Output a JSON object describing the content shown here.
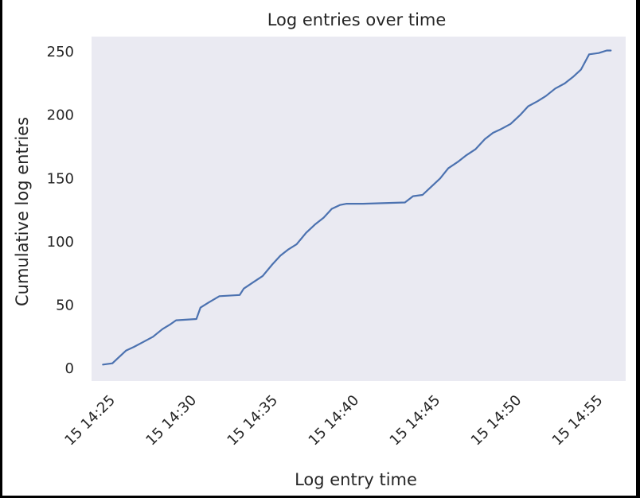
{
  "colors": {
    "page_background": "#ffffff",
    "outer_border": "#000000",
    "plot_background": "#eaeaf2",
    "line": "#4c72b0",
    "text": "#262626"
  },
  "chart_data": {
    "type": "line",
    "title": "Log entries over time",
    "xlabel": "Log entry time",
    "ylabel": "Cumulative log entries",
    "grid": false,
    "legend": "none",
    "ylim": [
      -10,
      262
    ],
    "xlim": [
      "15 14:23:48",
      "15 14:56:40"
    ],
    "yticks": [
      0,
      50,
      100,
      150,
      200,
      250
    ],
    "xticks": [
      {
        "label": "15 14:25",
        "time": "15 14:25:00"
      },
      {
        "label": "15 14:30",
        "time": "15 14:30:00"
      },
      {
        "label": "15 14:35",
        "time": "15 14:35:00"
      },
      {
        "label": "15 14:40",
        "time": "15 14:40:00"
      },
      {
        "label": "15 14:45",
        "time": "15 14:45:00"
      },
      {
        "label": "15 14:50",
        "time": "15 14:50:00"
      },
      {
        "label": "15 14:55",
        "time": "15 14:55:00"
      }
    ],
    "series": [
      {
        "x": [
          "15 14:24:30",
          "15 14:25:05",
          "15 14:25:25",
          "15 14:25:55",
          "15 14:26:25",
          "15 14:27:00",
          "15 14:27:35",
          "15 14:28:10",
          "15 14:28:40",
          "15 14:29:00",
          "15 14:30:15",
          "15 14:30:30",
          "15 14:31:00",
          "15 14:31:40",
          "15 14:32:55",
          "15 14:33:10",
          "15 14:33:45",
          "15 14:34:20",
          "15 14:34:55",
          "15 14:35:25",
          "15 14:35:55",
          "15 14:36:25",
          "15 14:37:00",
          "15 14:37:35",
          "15 14:38:05",
          "15 14:38:35",
          "15 14:39:05",
          "15 14:39:30",
          "15 14:40:30",
          "15 14:43:05",
          "15 14:43:35",
          "15 14:44:10",
          "15 14:44:40",
          "15 14:45:15",
          "15 14:45:45",
          "15 14:46:20",
          "15 14:46:50",
          "15 14:47:25",
          "15 14:48:00",
          "15 14:48:30",
          "15 14:49:00",
          "15 14:49:35",
          "15 14:50:10",
          "15 14:50:40",
          "15 14:51:15",
          "15 14:51:45",
          "15 14:52:20",
          "15 14:52:55",
          "15 14:53:25",
          "15 14:53:55",
          "15 14:54:25",
          "15 14:55:00",
          "15 14:55:30",
          "15 14:55:45"
        ],
        "values": [
          3,
          4,
          8,
          14,
          17,
          21,
          25,
          31,
          35,
          38,
          39,
          48,
          52,
          57,
          58,
          63,
          68,
          73,
          82,
          89,
          94,
          98,
          107,
          114,
          119,
          126,
          129,
          130,
          130,
          131,
          136,
          137,
          143,
          150,
          158,
          163,
          168,
          173,
          181,
          186,
          189,
          193,
          200,
          207,
          211,
          215,
          221,
          225,
          230,
          236,
          248,
          249,
          251,
          251
        ]
      }
    ]
  }
}
